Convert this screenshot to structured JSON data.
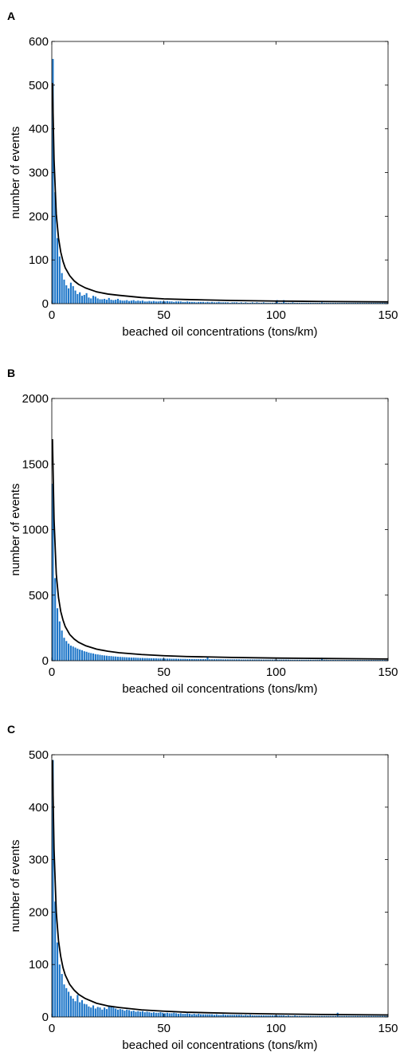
{
  "colors": {
    "bar": "#1f77c9",
    "fit": "#000000",
    "axis": "#000000"
  },
  "chart_data": [
    {
      "panel": "A",
      "type": "bar",
      "xlabel": "beached oil concentrations (tons/km)",
      "ylabel": "number of events",
      "xlim": [
        0,
        150
      ],
      "ylim": [
        0,
        600
      ],
      "xticks": [
        0,
        50,
        100,
        150
      ],
      "yticks": [
        0,
        100,
        200,
        300,
        400,
        500,
        600
      ],
      "bin_width": 1,
      "values": [
        560,
        255,
        150,
        108,
        70,
        55,
        42,
        35,
        48,
        40,
        30,
        22,
        26,
        18,
        20,
        24,
        14,
        12,
        18,
        16,
        12,
        10,
        10,
        11,
        9,
        13,
        9,
        8,
        9,
        11,
        8,
        7,
        7,
        8,
        6,
        7,
        8,
        6,
        7,
        6,
        7,
        5,
        5,
        6,
        5,
        6,
        5,
        5,
        6,
        5,
        5,
        6,
        5,
        5,
        4,
        5,
        5,
        5,
        4,
        4,
        5,
        4,
        4,
        4,
        3,
        4,
        4,
        4,
        3,
        4,
        3,
        4,
        3,
        3,
        4,
        3,
        3,
        3,
        3,
        2,
        3,
        3,
        3,
        2,
        3,
        2,
        3,
        2,
        2,
        3,
        2,
        3,
        2,
        2,
        3,
        2,
        2,
        2,
        2,
        2,
        8,
        2,
        2,
        8,
        2,
        2,
        2,
        3,
        2,
        2,
        2,
        2,
        2,
        2,
        2,
        2,
        2,
        2,
        2,
        2,
        3,
        2,
        2,
        2,
        2,
        2,
        2,
        2,
        2,
        2,
        2,
        2,
        2,
        2,
        2,
        2,
        2,
        2,
        2,
        2,
        2,
        2,
        2,
        2,
        2,
        2,
        2,
        2,
        2,
        2
      ],
      "fit": {
        "x": [
          0.3,
          1,
          2,
          3,
          4,
          5,
          6,
          8,
          10,
          12,
          15,
          20,
          25,
          30,
          40,
          50,
          60,
          80,
          100,
          120,
          150
        ],
        "y": [
          505,
          330,
          205,
          150,
          118,
          97,
          82,
          64,
          52,
          44,
          36,
          27,
          22,
          19,
          14,
          11,
          9.5,
          7.3,
          5.9,
          5,
          4
        ]
      }
    },
    {
      "panel": "B",
      "type": "bar",
      "xlabel": "beached oil concentrations (tons/km)",
      "ylabel": "number of events",
      "xlim": [
        0,
        150
      ],
      "ylim": [
        0,
        2000
      ],
      "xticks": [
        0,
        50,
        100,
        150
      ],
      "yticks": [
        0,
        500,
        1000,
        1500,
        2000
      ],
      "bin_width": 1,
      "values": [
        1350,
        630,
        400,
        300,
        230,
        175,
        150,
        130,
        115,
        108,
        100,
        92,
        85,
        80,
        72,
        68,
        62,
        58,
        55,
        50,
        48,
        45,
        42,
        40,
        38,
        36,
        35,
        33,
        32,
        30,
        29,
        28,
        27,
        26,
        25,
        24,
        24,
        23,
        22,
        21,
        21,
        20,
        20,
        19,
        19,
        18,
        18,
        17,
        17,
        17,
        16,
        16,
        16,
        15,
        15,
        15,
        14,
        14,
        14,
        14,
        13,
        13,
        13,
        13,
        12,
        12,
        12,
        12,
        12,
        26,
        11,
        11,
        11,
        11,
        11,
        11,
        10,
        10,
        10,
        10,
        10,
        10,
        10,
        10,
        9,
        9,
        9,
        9,
        9,
        9,
        9,
        9,
        9,
        8,
        8,
        8,
        8,
        8,
        8,
        8,
        8,
        8,
        8,
        8,
        8,
        8,
        7,
        7,
        7,
        7,
        7,
        7,
        7,
        7,
        7,
        7,
        7,
        7,
        7,
        7,
        22,
        7,
        7,
        6,
        6,
        6,
        6,
        6,
        6,
        6,
        6,
        6,
        6,
        6,
        6,
        6,
        6,
        6,
        6,
        6,
        6,
        6,
        6,
        6,
        6,
        6,
        6,
        6,
        6,
        6
      ],
      "fit": {
        "x": [
          0.3,
          1,
          2,
          3,
          4,
          5,
          6,
          8,
          10,
          12,
          15,
          20,
          25,
          30,
          40,
          50,
          60,
          80,
          100,
          120,
          150
        ],
        "y": [
          1690,
          1080,
          660,
          480,
          375,
          310,
          260,
          200,
          165,
          140,
          115,
          88,
          72,
          61,
          47,
          38,
          32,
          25,
          20,
          17,
          13
        ]
      }
    },
    {
      "panel": "C",
      "type": "bar",
      "xlabel": "beached oil concentrations (tons/km)",
      "ylabel": "number of events",
      "xlim": [
        0,
        150
      ],
      "ylim": [
        0,
        500
      ],
      "xticks": [
        0,
        50,
        100,
        150
      ],
      "yticks": [
        0,
        100,
        200,
        300,
        400,
        500
      ],
      "bin_width": 1,
      "values": [
        490,
        220,
        142,
        100,
        82,
        62,
        55,
        48,
        40,
        35,
        30,
        42,
        28,
        32,
        25,
        24,
        20,
        18,
        22,
        16,
        19,
        18,
        14,
        18,
        15,
        22,
        20,
        18,
        16,
        14,
        15,
        14,
        12,
        14,
        13,
        11,
        12,
        10,
        11,
        10,
        11,
        9,
        10,
        9,
        8,
        9,
        8,
        8,
        9,
        8,
        7,
        8,
        7,
        7,
        8,
        7,
        6,
        7,
        6,
        6,
        7,
        6,
        5,
        6,
        5,
        6,
        5,
        5,
        5,
        5,
        5,
        5,
        4,
        5,
        4,
        4,
        5,
        4,
        4,
        4,
        4,
        4,
        4,
        4,
        4,
        3,
        4,
        3,
        4,
        3,
        3,
        3,
        3,
        3,
        3,
        3,
        3,
        3,
        3,
        3,
        3,
        3,
        3,
        3,
        2,
        3,
        2,
        2,
        3,
        2,
        2,
        2,
        2,
        2,
        2,
        2,
        2,
        2,
        2,
        2,
        2,
        2,
        2,
        2,
        2,
        2,
        2,
        8,
        2,
        2,
        2,
        2,
        2,
        2,
        2,
        2,
        2,
        2,
        2,
        2,
        2,
        2,
        2,
        2,
        2,
        2,
        2,
        2,
        2,
        2
      ],
      "fit": {
        "x": [
          0.3,
          1,
          2,
          3,
          4,
          5,
          6,
          8,
          10,
          12,
          15,
          20,
          25,
          30,
          40,
          50,
          60,
          80,
          100,
          120,
          150
        ],
        "y": [
          490,
          320,
          200,
          145,
          115,
          94,
          80,
          62,
          51,
          43,
          35,
          26,
          21,
          18,
          13.5,
          11,
          9,
          7,
          5.7,
          4.8,
          3.8
        ]
      }
    }
  ]
}
